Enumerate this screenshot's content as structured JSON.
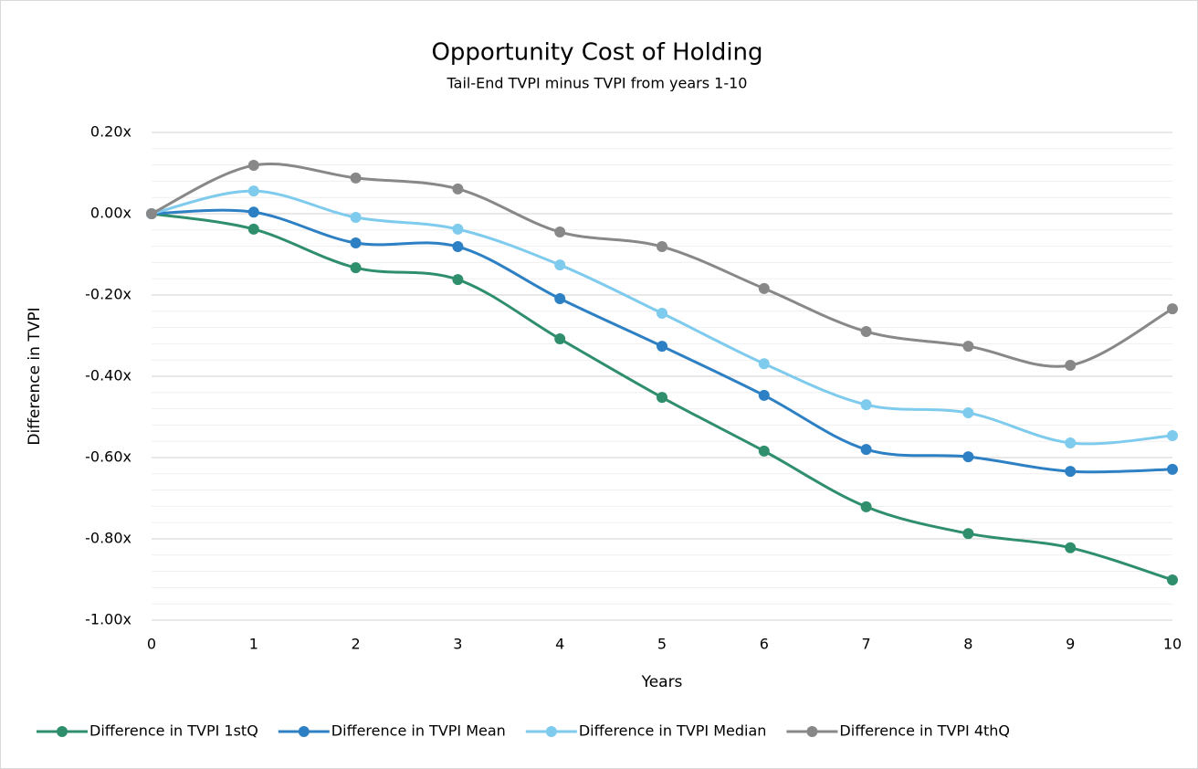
{
  "chart_data": {
    "type": "line",
    "title": "Opportunity Cost of Holding",
    "subtitle": "Tail-End TVPI minus TVPI from years 1-10",
    "x_label": "Years",
    "y_label": "Difference in TVPI",
    "x": [
      0,
      1,
      2,
      3,
      4,
      5,
      6,
      7,
      8,
      9,
      10
    ],
    "xlim": [
      0,
      10
    ],
    "xticks": [
      0,
      1,
      2,
      3,
      4,
      5,
      6,
      7,
      8,
      9,
      10
    ],
    "ylim": [
      -1.0,
      0.2
    ],
    "yticks": [
      {
        "value": 0.2,
        "label": "0.20x"
      },
      {
        "value": 0.0,
        "label": "0.00x"
      },
      {
        "value": -0.2,
        "label": "-0.20x"
      },
      {
        "value": -0.4,
        "label": "-0.40x"
      },
      {
        "value": -0.6,
        "label": "-0.60x"
      },
      {
        "value": -0.8,
        "label": "-0.80x"
      },
      {
        "value": -1.0,
        "label": "-1.00x"
      }
    ],
    "y_minor_ticks": [
      0.16,
      0.12,
      0.08,
      0.04,
      -0.04,
      -0.08,
      -0.12,
      -0.16,
      -0.24,
      -0.28,
      -0.32,
      -0.36,
      -0.44,
      -0.48,
      -0.52,
      -0.56,
      -0.64,
      -0.68,
      -0.72,
      -0.76,
      -0.84,
      -0.88,
      -0.92,
      -0.96
    ],
    "grid": true,
    "smooth": true,
    "legend": "bottom",
    "series": [
      {
        "name": "Difference in TVPI 1stQ",
        "color": "#2f8f6c",
        "values": [
          0,
          -0.038,
          -0.133,
          -0.162,
          -0.308,
          -0.452,
          -0.584,
          -0.721,
          -0.787,
          -0.822,
          -0.901
        ]
      },
      {
        "name": "Difference in TVPI Mean",
        "color": "#2e80c4",
        "values": [
          0,
          0.004,
          -0.072,
          -0.081,
          -0.209,
          -0.326,
          -0.447,
          -0.58,
          -0.598,
          -0.634,
          -0.629
        ]
      },
      {
        "name": "Difference in TVPI Median",
        "color": "#7ecbee",
        "values": [
          0,
          0.056,
          -0.009,
          -0.038,
          -0.126,
          -0.245,
          -0.369,
          -0.47,
          -0.49,
          -0.564,
          -0.546
        ]
      },
      {
        "name": "Difference in TVPI 4thQ",
        "color": "#888888",
        "values": [
          0,
          0.119,
          0.088,
          0.061,
          -0.045,
          -0.081,
          -0.184,
          -0.29,
          -0.326,
          -0.373,
          -0.234
        ]
      }
    ]
  }
}
